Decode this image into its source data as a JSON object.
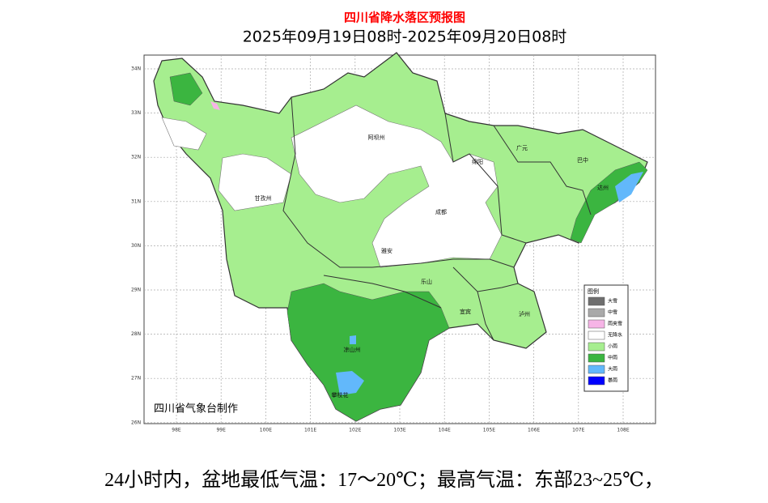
{
  "map": {
    "title": "四川省降水落区预报图",
    "subtitle": "2025年09月19日08时-2025年09月20日08时",
    "credit": "四川省气象台制作",
    "lon_labels": [
      "98E",
      "99E",
      "100E",
      "101E",
      "102E",
      "103E",
      "104E",
      "105E",
      "106E",
      "107E",
      "108E"
    ],
    "lat_labels": [
      "34N",
      "33N",
      "32N",
      "31N",
      "30N",
      "29N",
      "28N",
      "27N",
      "26N"
    ],
    "legend": {
      "title": "图例",
      "items": [
        {
          "label": "大雪",
          "color": "#6e6e6e"
        },
        {
          "label": "中雪",
          "color": "#a9a9a9"
        },
        {
          "label": "雨夹雪",
          "color": "#f6b4e6"
        },
        {
          "label": "无降水",
          "color": "#ffffff"
        },
        {
          "label": "小雨",
          "color": "#a6ee8f"
        },
        {
          "label": "中雨",
          "color": "#3bb540"
        },
        {
          "label": "大雨",
          "color": "#62b8fb"
        },
        {
          "label": "暴雨",
          "color": "#0000fe"
        }
      ]
    },
    "places": [
      "阿坝州",
      "甘孜州",
      "凉山州",
      "攀枝花",
      "广元",
      "巴中",
      "达州",
      "绵阳",
      "成都",
      "雅安",
      "乐山",
      "宜宾",
      "泸州"
    ],
    "caption": "24小时内，盆地最低气温：17～20℃；最高气温：东部23~25℃，"
  }
}
